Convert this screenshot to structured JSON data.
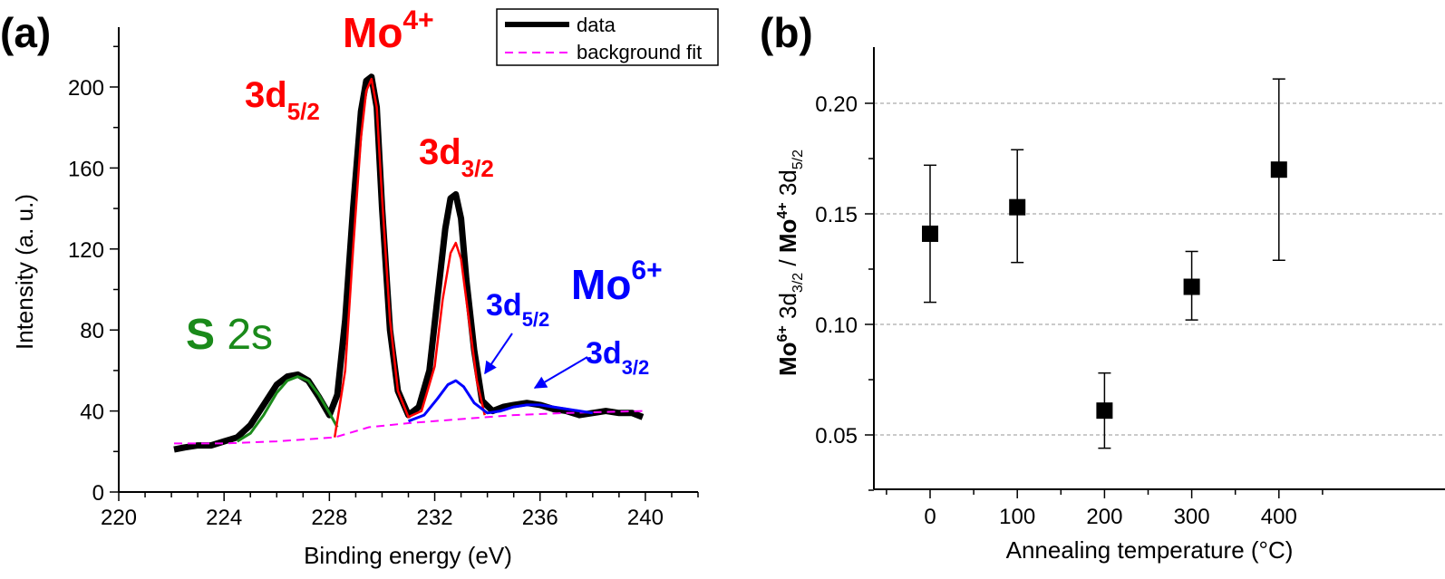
{
  "panels": [
    {
      "label": "(a)",
      "xlabel": "Binding energy (eV)",
      "ylabel": "Intensity (a. u.)",
      "legend": [
        {
          "label": "data"
        },
        {
          "label": "background fit"
        }
      ],
      "annotations": {
        "s_bold": "S",
        "s_rest": " 2s",
        "mo4_base": "Mo",
        "mo4_sup": "4+",
        "d52_red_base": "3d",
        "d52_red_sub": "5/2",
        "d32_red_base": "3d",
        "d32_red_sub": "3/2",
        "mo6_base": "Mo",
        "mo6_sup": "6+",
        "d52_blue_base": "3d",
        "d52_blue_sub": "5/2",
        "d32_blue_base": "3d",
        "d32_blue_sub": "3/2"
      }
    },
    {
      "label": "(b)",
      "xlabel": "Annealing temperature (°C)",
      "ylabel_parts": {
        "a": "Mo",
        "a_sup": "6+",
        "b": " 3d",
        "b_sub": "3/2",
        "c": " / ",
        "d": "Mo",
        "d_sup": "4+",
        "e": " 3d",
        "e_sub": "5/2"
      }
    }
  ],
  "colors": {
    "data": "#000000",
    "mo4_fit": "#ff0000",
    "mo6_fit": "#0000ff",
    "s2s_fit": "#1a8a1a",
    "background": "#ff00ff",
    "grid": "#aaaaaa"
  },
  "chart_data": [
    {
      "type": "line",
      "xlim": [
        220,
        242
      ],
      "ylim": [
        0,
        220
      ],
      "xticks": [
        220,
        224,
        228,
        232,
        236,
        240
      ],
      "yticks": [
        0,
        40,
        80,
        120,
        160,
        200
      ],
      "grid": false,
      "legend_position": "top-right",
      "series": [
        {
          "name": "data",
          "x": [
            222.1,
            222.5,
            223.0,
            223.5,
            224.0,
            224.5,
            225.0,
            225.5,
            226.0,
            226.4,
            226.8,
            227.2,
            227.6,
            228.0,
            228.3,
            228.6,
            228.9,
            229.2,
            229.4,
            229.6,
            229.8,
            230.0,
            230.3,
            230.6,
            231.0,
            231.4,
            231.8,
            232.1,
            232.4,
            232.6,
            232.8,
            233.0,
            233.2,
            233.5,
            233.8,
            234.2,
            234.6,
            235.0,
            235.5,
            236.0,
            236.5,
            237.0,
            237.5,
            238.0,
            238.5,
            239.0,
            239.5,
            239.9
          ],
          "y": [
            21,
            22,
            23,
            23,
            25,
            27,
            33,
            43,
            53,
            57,
            58,
            55,
            47,
            38,
            48,
            85,
            140,
            188,
            203,
            205,
            190,
            140,
            80,
            50,
            38,
            42,
            60,
            95,
            130,
            145,
            147,
            135,
            105,
            70,
            45,
            40,
            42,
            43,
            44,
            43,
            41,
            40,
            38,
            39,
            40,
            39,
            39,
            37
          ]
        },
        {
          "name": "background fit",
          "x": [
            222.1,
            224.0,
            226.0,
            228.2,
            229.5,
            231.0,
            233.0,
            235.0,
            237.0,
            239.9
          ],
          "y": [
            24,
            24,
            25,
            27,
            32,
            34,
            36,
            38,
            39,
            40
          ]
        },
        {
          "name": "",
          "x": [
            224.5,
            225.0,
            225.5,
            226.0,
            226.4,
            226.8,
            227.2,
            227.6,
            228.0,
            228.3
          ],
          "y": [
            25,
            29,
            38,
            49,
            55,
            57,
            55,
            48,
            39,
            32
          ]
        },
        {
          "name": "",
          "x": [
            228.2,
            228.6,
            228.9,
            229.2,
            229.4,
            229.6,
            229.8,
            230.0,
            230.3,
            230.6,
            231.0,
            231.5,
            232.0,
            232.3,
            232.6,
            232.8,
            233.0,
            233.3,
            233.6,
            233.9
          ],
          "y": [
            27,
            60,
            120,
            175,
            198,
            204,
            190,
            145,
            85,
            50,
            37,
            40,
            62,
            95,
            118,
            123,
            115,
            85,
            55,
            38
          ]
        },
        {
          "name": "",
          "x": [
            231.0,
            231.6,
            232.1,
            232.5,
            232.8,
            233.1,
            233.5,
            234.0,
            234.5,
            235.0,
            235.5,
            236.0,
            236.5,
            237.0,
            237.5,
            238.0
          ],
          "y": [
            35,
            38,
            46,
            53,
            55,
            52,
            44,
            39,
            40,
            42,
            43,
            43,
            42,
            41,
            40,
            39
          ]
        }
      ]
    },
    {
      "type": "scatter",
      "xlim": [
        -60,
        450
      ],
      "ylim": [
        0.025,
        0.225
      ],
      "xticks": [
        0,
        100,
        200,
        300,
        400
      ],
      "yticks": [
        0.05,
        0.1,
        0.15,
        0.2
      ],
      "grid": true,
      "points": [
        {
          "x": 0,
          "y": 0.141,
          "err_low": 0.11,
          "err_high": 0.172
        },
        {
          "x": 100,
          "y": 0.153,
          "err_low": 0.128,
          "err_high": 0.179
        },
        {
          "x": 200,
          "y": 0.061,
          "err_low": 0.044,
          "err_high": 0.078
        },
        {
          "x": 300,
          "y": 0.117,
          "err_low": 0.102,
          "err_high": 0.133
        },
        {
          "x": 400,
          "y": 0.17,
          "err_low": 0.129,
          "err_high": 0.211
        }
      ]
    }
  ]
}
